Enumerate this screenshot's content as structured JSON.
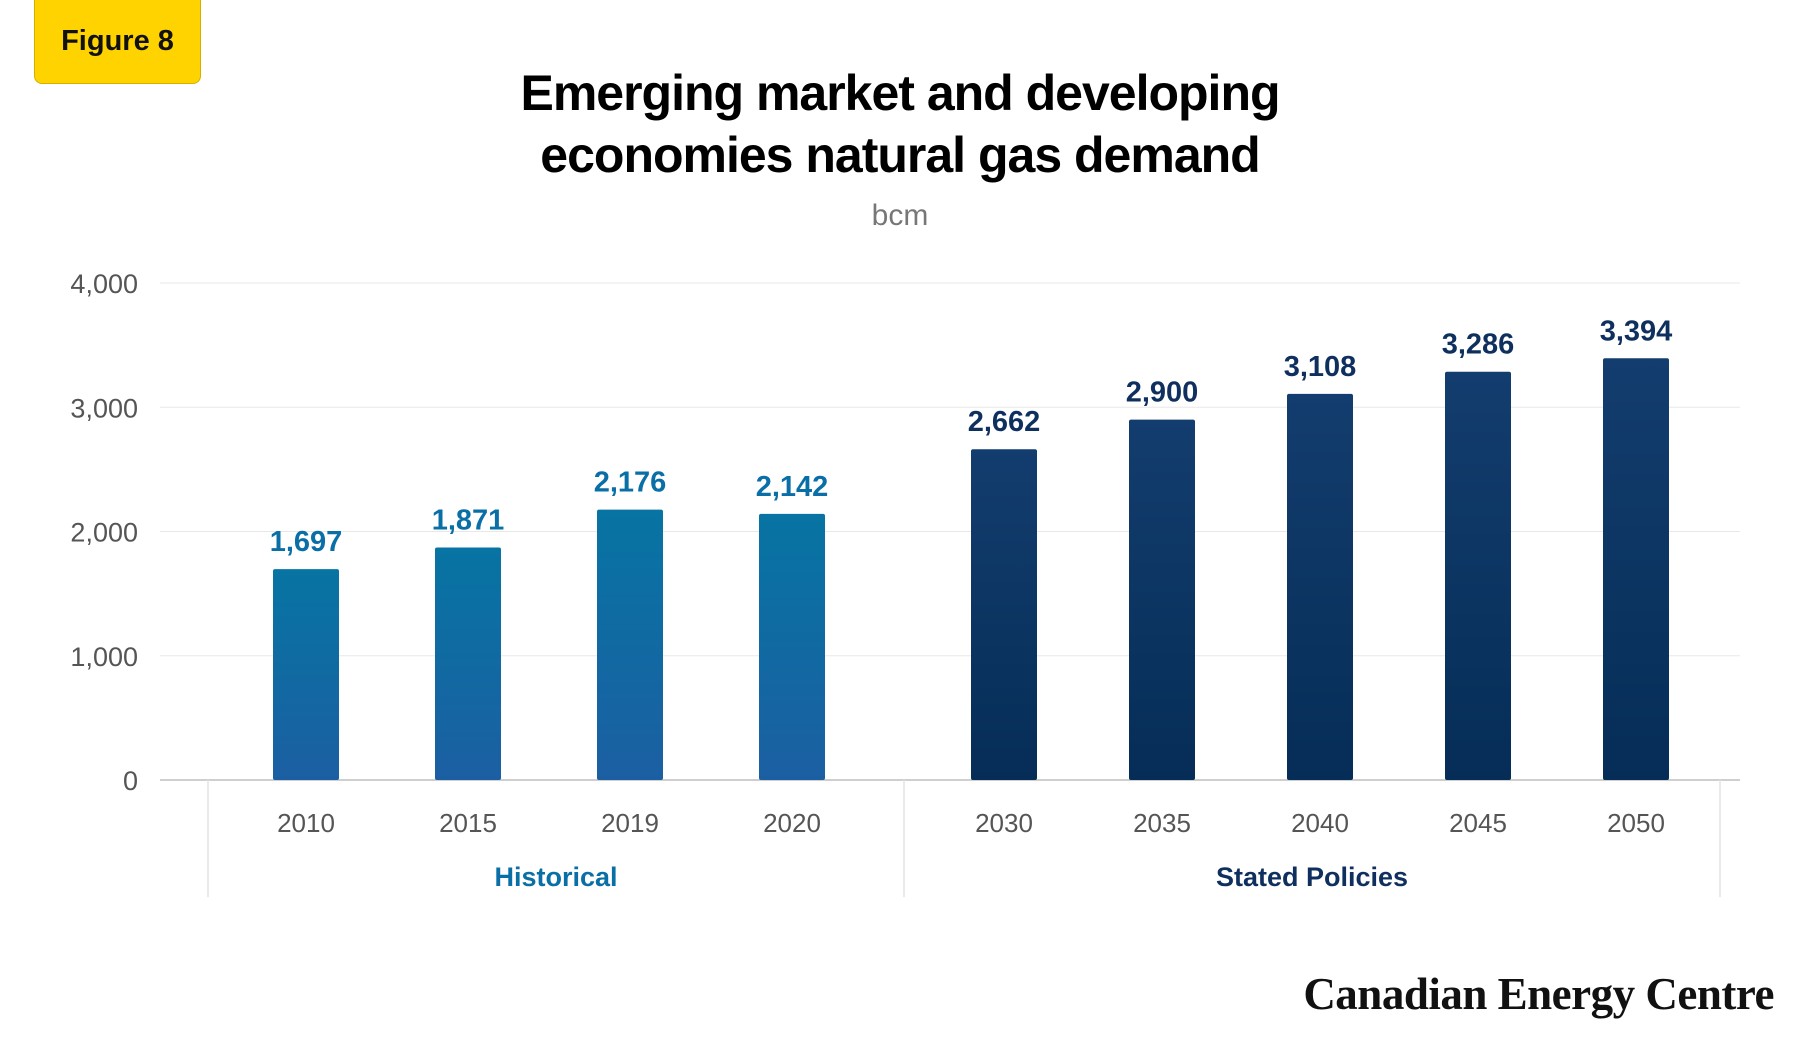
{
  "figure_label": "Figure 8",
  "brand": "Canadian Energy Centre",
  "colors": {
    "historical_top": "#0774a3",
    "historical_bottom": "#1b5fa2",
    "stated_top": "#133d6e",
    "stated_bottom": "#052d57",
    "historical_label": "#0a6fa6",
    "stated_label": "#0f305f",
    "axis_text": "#555555",
    "grid": "#e8e8e8"
  },
  "chart_data": {
    "type": "bar",
    "title_lines": [
      "Emerging market and developing",
      "economies natural gas demand"
    ],
    "subtitle": "bcm",
    "xlabel": "",
    "ylabel": "",
    "ylim": [
      0,
      4000
    ],
    "yticks": [
      0,
      1000,
      2000,
      3000,
      4000
    ],
    "ytick_labels": [
      "0",
      "1,000",
      "2,000",
      "3,000",
      "4,000"
    ],
    "grid": true,
    "groups": [
      {
        "name": "Historical",
        "categories": [
          "2010",
          "2015",
          "2019",
          "2020"
        ],
        "values": [
          1697,
          1871,
          2176,
          2142
        ],
        "value_labels": [
          "1,697",
          "1,871",
          "2,176",
          "2,142"
        ]
      },
      {
        "name": "Stated Policies",
        "categories": [
          "2030",
          "2035",
          "2040",
          "2045",
          "2050"
        ],
        "values": [
          2662,
          2900,
          3108,
          3286,
          3394
        ],
        "value_labels": [
          "2,662",
          "2,900",
          "3,108",
          "3,286",
          "3,394"
        ]
      }
    ]
  }
}
